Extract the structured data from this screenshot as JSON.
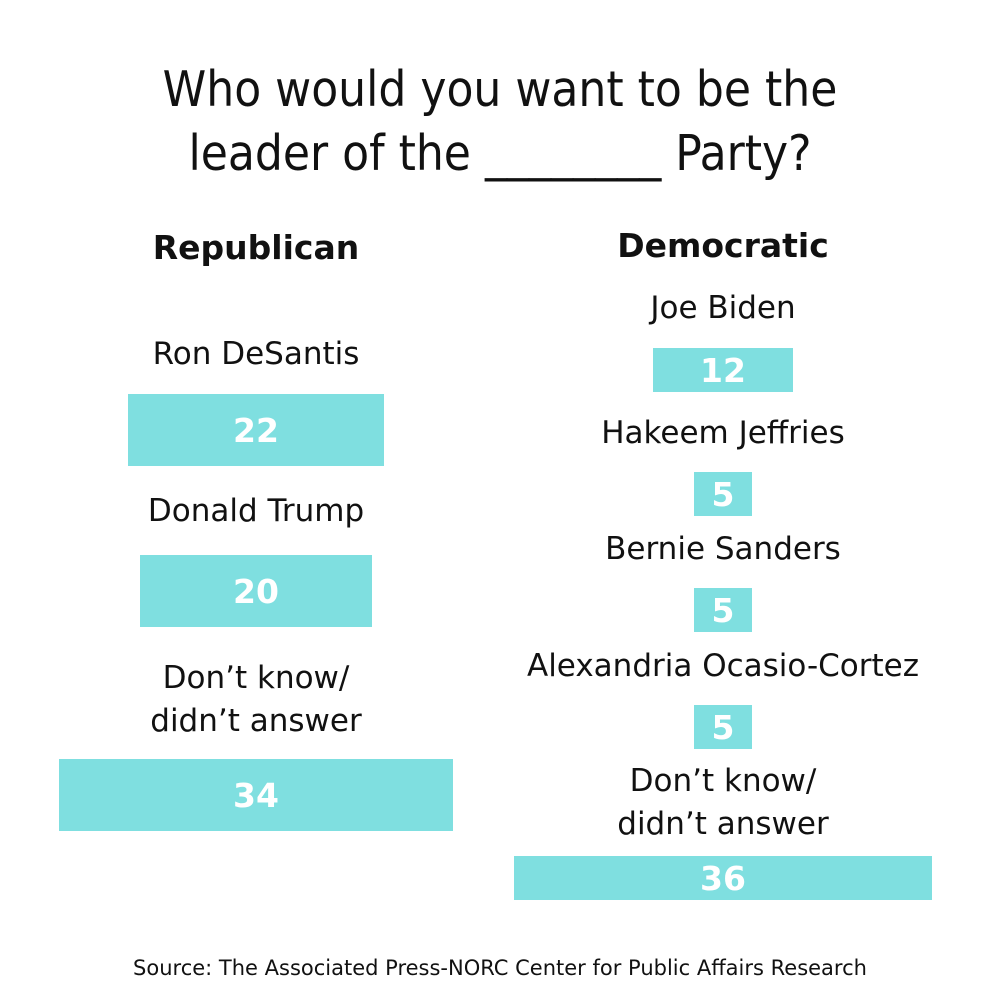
{
  "title": {
    "line1": "Who would you want to be the",
    "line2": "leader of the ________ Party?"
  },
  "source": "Source: The Associated Press-NORC Center for Public Affairs Research",
  "colors": {
    "bar": "#7fdfe0",
    "bar_text": "#ffffff",
    "text": "#111111"
  },
  "chart_data": [
    {
      "type": "bar",
      "title": "Republican",
      "categories": [
        "Ron DeSantis",
        "Donald Trump",
        "Don’t know/ didn’t answer"
      ],
      "category_lines": [
        [
          "Ron DeSantis"
        ],
        [
          "Donald Trump"
        ],
        [
          "Don’t know/",
          "didn’t answer"
        ]
      ],
      "values": [
        22,
        20,
        34
      ]
    },
    {
      "type": "bar",
      "title": "Democratic",
      "categories": [
        "Joe Biden",
        "Hakeem Jeffries",
        "Bernie Sanders",
        "Alexandria Ocasio-Cortez",
        "Don’t know/ didn’t answer"
      ],
      "category_lines": [
        [
          "Joe Biden"
        ],
        [
          "Hakeem Jeffries"
        ],
        [
          "Bernie Sanders"
        ],
        [
          "Alexandria Ocasio-Cortez"
        ],
        [
          "Don’t know/",
          "didn’t answer"
        ]
      ],
      "values": [
        12,
        5,
        5,
        5,
        36
      ]
    }
  ]
}
